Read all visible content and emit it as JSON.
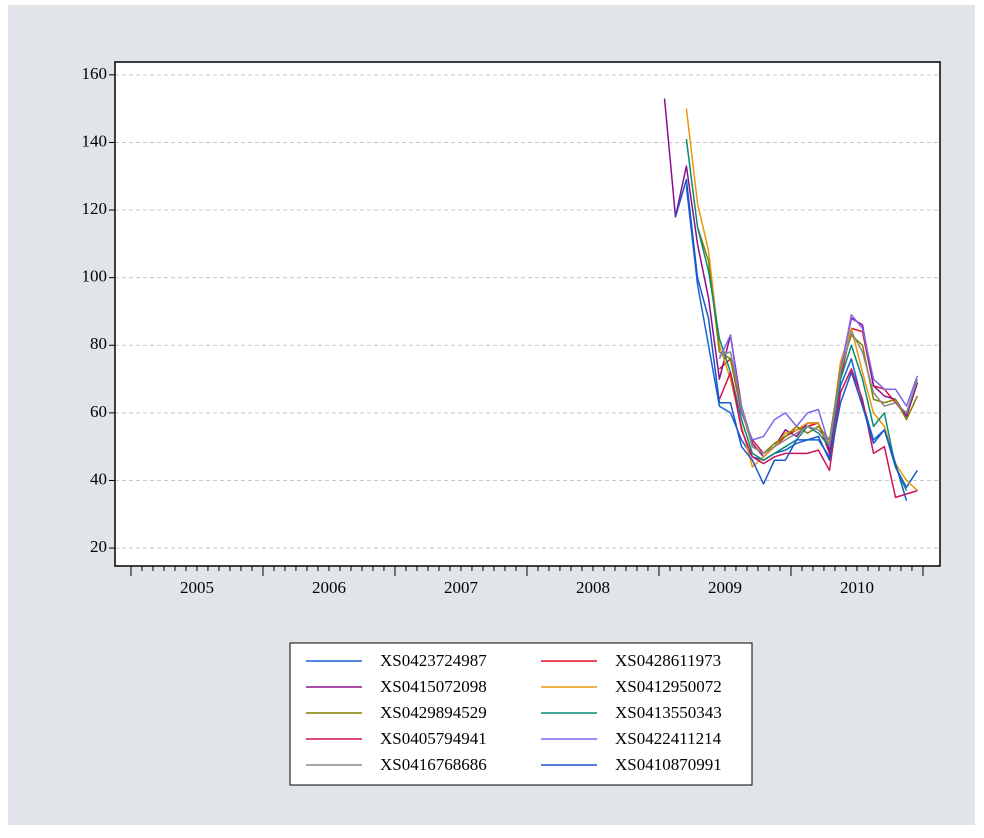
{
  "chart_data": {
    "type": "line",
    "x": [
      2009.042,
      2009.125,
      2009.208,
      2009.292,
      2009.375,
      2009.458,
      2009.542,
      2009.625,
      2009.708,
      2009.792,
      2009.875,
      2009.958,
      2010.042,
      2010.125,
      2010.208,
      2010.292,
      2010.375,
      2010.458,
      2010.542,
      2010.625,
      2010.708,
      2010.792,
      2010.875,
      2010.958
    ],
    "xlim": [
      2004.879,
      2011.129
    ],
    "xticks": [
      {
        "value": 2005.5,
        "label": "2005"
      },
      {
        "value": 2006.5,
        "label": "2006"
      },
      {
        "value": 2007.5,
        "label": "2007"
      },
      {
        "value": 2008.5,
        "label": "2008"
      },
      {
        "value": 2009.5,
        "label": "2009"
      },
      {
        "value": 2010.5,
        "label": "2010"
      }
    ],
    "ylim": [
      14.7,
      163.8
    ],
    "yticks": [
      20,
      40,
      60,
      80,
      100,
      120,
      140,
      160
    ],
    "grid": true,
    "legend": "bottom",
    "series": [
      {
        "name": "XS0423724987",
        "color": "#1464d2",
        "values": [
          null,
          null,
          127,
          98,
          80,
          62,
          60,
          52,
          47,
          46,
          48,
          49,
          51,
          52,
          52,
          47,
          68,
          76,
          63,
          52,
          55,
          44,
          38,
          43
        ]
      },
      {
        "name": "XS0428611973",
        "color": "#e0102a",
        "values": [
          null,
          null,
          null,
          null,
          null,
          73,
          76,
          60,
          52,
          48,
          50,
          53,
          55,
          56,
          57,
          48,
          70,
          85,
          84,
          68,
          67,
          63,
          59,
          69
        ]
      },
      {
        "name": "XS0415072098",
        "color": "#8b108b",
        "values": [
          153,
          118,
          133,
          110,
          94,
          70,
          83,
          62,
          51,
          47,
          50,
          55,
          53,
          57,
          57,
          49,
          73,
          88,
          86,
          68,
          65,
          64,
          59,
          69
        ]
      },
      {
        "name": "XS0412950072",
        "color": "#e8980c",
        "values": [
          null,
          null,
          150,
          122,
          108,
          80,
          70,
          56,
          44,
          47,
          50,
          54,
          55,
          57,
          57,
          50,
          75,
          85,
          72,
          60,
          56,
          45,
          40,
          37
        ]
      },
      {
        "name": "XS0429894529",
        "color": "#808000",
        "values": [
          null,
          null,
          null,
          115,
          105,
          78,
          76,
          61,
          50,
          48,
          51,
          53,
          56,
          54,
          56,
          52,
          73,
          83,
          80,
          64,
          63,
          64,
          58,
          65
        ]
      },
      {
        "name": "XS0413550343",
        "color": "#0a8a78",
        "values": [
          null,
          null,
          141,
          115,
          102,
          82,
          72,
          58,
          48,
          46,
          48,
          50,
          52,
          56,
          54,
          50,
          70,
          80,
          70,
          56,
          60,
          44,
          37,
          null
        ]
      },
      {
        "name": "XS0405794941",
        "color": "#d0105a",
        "values": [
          null,
          null,
          null,
          null,
          null,
          64,
          72,
          55,
          47,
          45,
          47,
          48,
          48,
          48,
          49,
          43,
          66,
          73,
          64,
          48,
          50,
          35,
          36,
          37
        ]
      },
      {
        "name": "XS0422411214",
        "color": "#7b68ee",
        "values": [
          null,
          null,
          null,
          null,
          null,
          76,
          83,
          60,
          52,
          53,
          58,
          60,
          56,
          60,
          61,
          50,
          72,
          89,
          85,
          70,
          67,
          67,
          62,
          71
        ]
      },
      {
        "name": "XS0416768686",
        "color": "#888888",
        "values": [
          null,
          null,
          null,
          null,
          null,
          77,
          78,
          62,
          50,
          48,
          50,
          52,
          54,
          56,
          55,
          51,
          72,
          84,
          78,
          66,
          62,
          63,
          60,
          70
        ]
      },
      {
        "name": "XS0410870991",
        "color": "#1a56c8",
        "values": [
          null,
          118,
          129,
          100,
          88,
          63,
          63,
          50,
          46,
          39,
          46,
          46,
          52,
          52,
          53,
          46,
          63,
          72,
          62,
          51,
          55,
          45,
          34,
          null
        ]
      }
    ]
  }
}
